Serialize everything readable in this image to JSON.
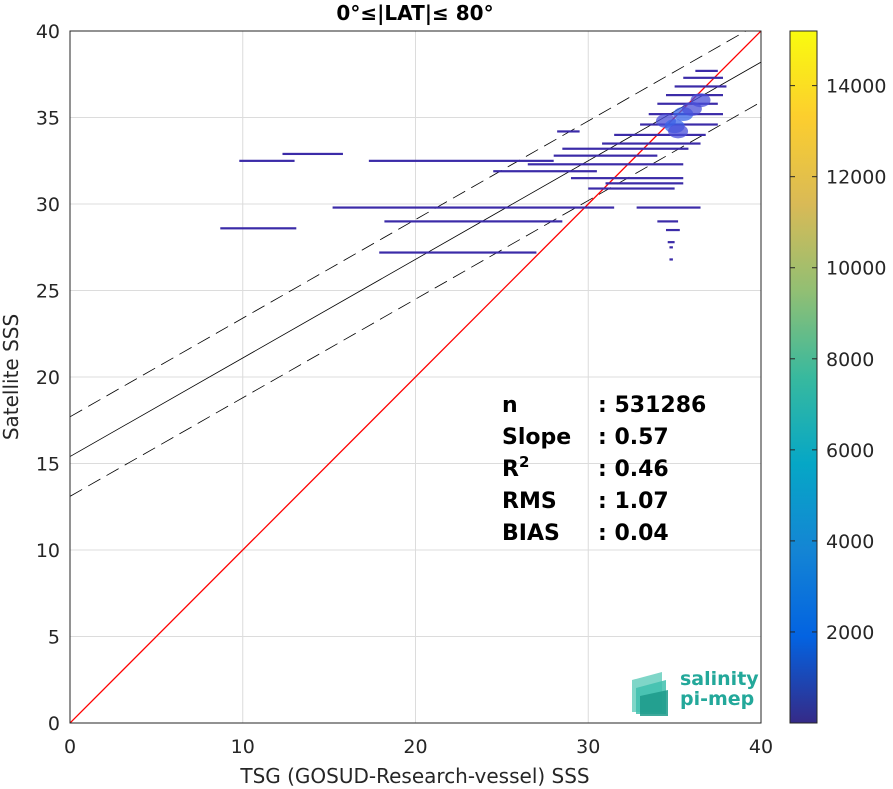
{
  "chart_data": {
    "type": "scatter",
    "title": "0°≤|LAT|≤ 80°",
    "xlabel": "TSG (GOSUD-Research-vessel) SSS",
    "ylabel": "Satellite SSS",
    "xlim": [
      0,
      40
    ],
    "ylim": [
      0,
      40
    ],
    "xticks": [
      "0",
      "10",
      "20",
      "30",
      "40"
    ],
    "yticks": [
      "0",
      "5",
      "10",
      "15",
      "20",
      "25",
      "30",
      "35",
      "40"
    ],
    "grid": true,
    "colorbar": {
      "range": [
        0,
        15200
      ],
      "ticks": [
        "2000",
        "4000",
        "6000",
        "8000",
        "10000",
        "12000",
        "14000"
      ],
      "colormap": "parula"
    },
    "lines": {
      "identity": {
        "intercept": 0,
        "slope": 1,
        "color": "#ff0000"
      },
      "regression": {
        "intercept": 15.4,
        "slope": 0.57,
        "color": "#000000"
      },
      "upper_bound": {
        "intercept": 17.7,
        "slope": 0.57,
        "style": "dashed"
      },
      "lower_bound": {
        "intercept": 13.1,
        "slope": 0.57,
        "style": "dashed"
      }
    },
    "density_segments": [
      {
        "x0": 8.7,
        "x1": 13.1,
        "y": 28.6
      },
      {
        "x0": 9.8,
        "x1": 13.0,
        "y": 32.5
      },
      {
        "x0": 12.3,
        "x1": 15.8,
        "y": 32.9
      },
      {
        "x0": 15.2,
        "x1": 31.5,
        "y": 29.8
      },
      {
        "x0": 17.3,
        "x1": 28.0,
        "y": 32.5
      },
      {
        "x0": 17.9,
        "x1": 27.0,
        "y": 27.2
      },
      {
        "x0": 18.2,
        "x1": 28.5,
        "y": 29.0
      },
      {
        "x0": 24.5,
        "x1": 30.5,
        "y": 31.9
      },
      {
        "x0": 26.5,
        "x1": 35.5,
        "y": 32.3
      },
      {
        "x0": 28.0,
        "x1": 34.0,
        "y": 32.8
      },
      {
        "x0": 28.5,
        "x1": 35.8,
        "y": 33.2
      },
      {
        "x0": 29.0,
        "x1": 35.5,
        "y": 31.5
      },
      {
        "x0": 30.0,
        "x1": 35.0,
        "y": 30.9
      },
      {
        "x0": 30.8,
        "x1": 36.5,
        "y": 33.5
      },
      {
        "x0": 31.5,
        "x1": 36.8,
        "y": 34.0
      },
      {
        "x0": 28.2,
        "x1": 29.5,
        "y": 34.2
      },
      {
        "x0": 31.0,
        "x1": 35.5,
        "y": 31.2
      },
      {
        "x0": 32.8,
        "x1": 36.5,
        "y": 29.8
      },
      {
        "x0": 34.0,
        "x1": 35.2,
        "y": 29.0
      },
      {
        "x0": 34.5,
        "x1": 35.3,
        "y": 28.5
      },
      {
        "x0": 34.6,
        "x1": 35.0,
        "y": 27.8
      },
      {
        "x0": 34.7,
        "x1": 34.9,
        "y": 27.5
      },
      {
        "x0": 34.7,
        "x1": 34.9,
        "y": 26.8
      },
      {
        "x0": 33.0,
        "x1": 37.5,
        "y": 34.6
      },
      {
        "x0": 33.5,
        "x1": 37.8,
        "y": 35.2
      },
      {
        "x0": 34.0,
        "x1": 37.5,
        "y": 35.8
      },
      {
        "x0": 34.5,
        "x1": 37.8,
        "y": 36.3
      },
      {
        "x0": 35.0,
        "x1": 38.0,
        "y": 36.8
      },
      {
        "x0": 35.5,
        "x1": 37.8,
        "y": 37.3
      },
      {
        "x0": 36.2,
        "x1": 37.5,
        "y": 37.7
      }
    ],
    "dense_core": [
      {
        "x": 34.5,
        "y": 34.8,
        "value": 2500
      },
      {
        "x": 35.0,
        "y": 34.5,
        "value": 3000
      },
      {
        "x": 35.5,
        "y": 35.2,
        "value": 2800
      },
      {
        "x": 36.0,
        "y": 35.5,
        "value": 2200
      },
      {
        "x": 36.5,
        "y": 36.0,
        "value": 1800
      },
      {
        "x": 35.2,
        "y": 34.2,
        "value": 2000
      }
    ],
    "stats": [
      {
        "label": "n",
        "sup": "",
        "value": ": 531286"
      },
      {
        "label": "Slope",
        "sup": "",
        "value": ": 0.57"
      },
      {
        "label": "R",
        "sup": "2",
        "value": ": 0.46"
      },
      {
        "label": "RMS",
        "sup": "",
        "value": ": 1.07"
      },
      {
        "label": "BIAS",
        "sup": "",
        "value": ": 0.04"
      }
    ]
  },
  "logo": {
    "line1": "salinity",
    "line2": "pi-mep"
  }
}
